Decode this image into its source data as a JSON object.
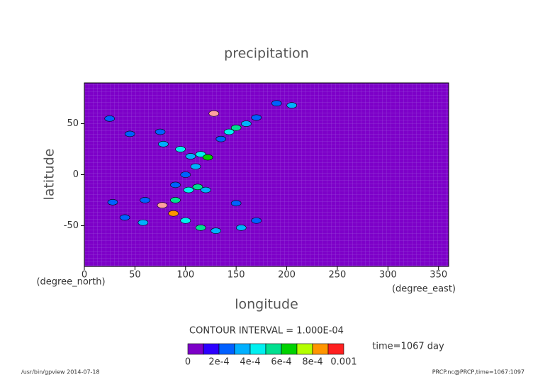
{
  "chart_data": {
    "type": "contour",
    "title": "precipitation",
    "xlabel": "longitude",
    "ylabel": "latitude",
    "xunit": "(degree_east)",
    "yunit": "(degree_north)",
    "xlim": [
      0,
      360
    ],
    "ylim": [
      -90,
      90
    ],
    "xticks": [
      0,
      50,
      100,
      150,
      200,
      250,
      300,
      350
    ],
    "yticks": [
      -50,
      0,
      50
    ],
    "background_color": "#7d00c8",
    "grid": true,
    "cells": [
      [
        128,
        60,
        0.001
      ],
      [
        205,
        68,
        0.0003
      ],
      [
        190,
        70,
        0.0002
      ],
      [
        150,
        46,
        0.0005
      ],
      [
        160,
        50,
        0.0003
      ],
      [
        143,
        42,
        0.0004
      ],
      [
        135,
        35,
        0.0002
      ],
      [
        170,
        56,
        0.0002
      ],
      [
        25,
        55,
        0.0002
      ],
      [
        45,
        40,
        0.0002
      ],
      [
        75,
        42,
        0.0002
      ],
      [
        78,
        30,
        0.0003
      ],
      [
        95,
        25,
        0.0004
      ],
      [
        105,
        18,
        0.0003
      ],
      [
        115,
        20,
        0.0004
      ],
      [
        122,
        17,
        0.0006
      ],
      [
        110,
        8,
        0.0003
      ],
      [
        100,
        0,
        0.0002
      ],
      [
        90,
        -10,
        0.0002
      ],
      [
        103,
        -15,
        0.0004
      ],
      [
        112,
        -12,
        0.0005
      ],
      [
        120,
        -15,
        0.0003
      ],
      [
        90,
        -25,
        0.0005
      ],
      [
        77,
        -30,
        0.001
      ],
      [
        60,
        -25,
        0.0002
      ],
      [
        28,
        -27,
        0.0002
      ],
      [
        88,
        -38,
        0.0008
      ],
      [
        100,
        -45,
        0.0004
      ],
      [
        115,
        -52,
        0.0005
      ],
      [
        130,
        -55,
        0.0003
      ],
      [
        155,
        -52,
        0.0003
      ],
      [
        150,
        -28,
        0.0002
      ],
      [
        170,
        -45,
        0.0002
      ],
      [
        58,
        -47,
        0.0003
      ],
      [
        40,
        -42,
        0.0002
      ]
    ],
    "contour_interval": "CONTOUR INTERVAL = 1.000E-04",
    "colorbar": {
      "levels": [
        0,
        0.0001,
        0.0002,
        0.0003,
        0.0004,
        0.0005,
        0.0006,
        0.0007,
        0.0008,
        0.0009,
        0.001
      ],
      "colors": [
        "#7d00c8",
        "#2d00ff",
        "#0060ff",
        "#00b0ff",
        "#00f0f0",
        "#00e090",
        "#00d200",
        "#b4ff00",
        "#ff9600",
        "#ff2020",
        "#ffa0a0"
      ],
      "ticks": [
        0,
        {
          "value": 0.0002,
          "label": "2e-4"
        },
        {
          "value": 0.0004,
          "label": "4e-4"
        },
        {
          "value": 0.0006,
          "label": "6e-4"
        },
        {
          "value": 0.0008,
          "label": "8e-4"
        },
        0.001
      ]
    },
    "time_label": "time=1067 day",
    "footer_left": "/usr/bin/gpview  2014-07-18",
    "footer_right": "PRCP.nc@PRCP,time=1067:1097"
  }
}
